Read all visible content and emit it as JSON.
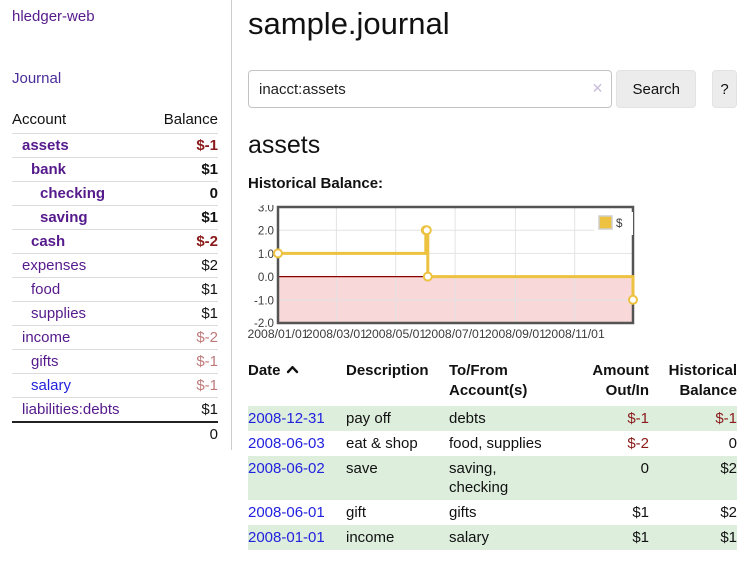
{
  "colors": {
    "accent_purple": "#551a8b",
    "link_blue": "#2222dd",
    "negative_strong": "#8b1a1a",
    "negative_soft": "#be7a7a",
    "row_stripe_green": "#ddeedd",
    "chart_line_gold": "#edc240",
    "chart_negative_fill": "#f8d8d8",
    "chart_zero_line": "#8b0000"
  },
  "sidebar": {
    "brand": "hledger-web",
    "journal_link": "Journal",
    "accounts": {
      "col_account": "Account",
      "col_balance": "Balance",
      "rows": [
        {
          "name": "assets",
          "balance": "$-1"
        },
        {
          "name": "bank",
          "balance": "$1"
        },
        {
          "name": "checking",
          "balance": "0"
        },
        {
          "name": "saving",
          "balance": "$1"
        },
        {
          "name": "cash",
          "balance": "$-2"
        },
        {
          "name": "expenses",
          "balance": "$2"
        },
        {
          "name": "food",
          "balance": "$1"
        },
        {
          "name": "supplies",
          "balance": "$1"
        },
        {
          "name": "income",
          "balance": "$-2"
        },
        {
          "name": "gifts",
          "balance": "$-1"
        },
        {
          "name": "salary",
          "balance": "$-1"
        },
        {
          "name": "liabilities:debts",
          "balance": "$1"
        }
      ],
      "total": "0"
    }
  },
  "main": {
    "title": "sample.journal",
    "search": {
      "value": "inacct:assets",
      "clear_icon": "✕",
      "search_button": "Search",
      "help_button": "?"
    },
    "heading": "assets",
    "chart_label": "Historical Balance:"
  },
  "chart_data": {
    "type": "line",
    "step": true,
    "title": "Historical Balance",
    "x": [
      "2008-01-01",
      "2008-06-01",
      "2008-06-02",
      "2008-06-03",
      "2008-12-31"
    ],
    "series": [
      {
        "name": "$",
        "color": "#edc240",
        "values": [
          1,
          2,
          2,
          0,
          -1
        ]
      }
    ],
    "ylim": [
      -2,
      3
    ],
    "ytick_labels": [
      "3.0",
      "2.0",
      "1.0",
      "0.0",
      "-1.0",
      "-2.0"
    ],
    "xtick_labels": [
      "2008/01/01",
      "2008/03/01",
      "2008/05/01",
      "2008/07/01",
      "2008/09/01",
      "2008/11/01"
    ],
    "legend": [
      "$"
    ],
    "legend_position": "top-right",
    "grid": true,
    "negative_region_fill": "#f8d8d8",
    "zero_line_color": "#8b0000"
  },
  "register": {
    "col_date": "Date",
    "col_description": "Description",
    "col_accounts": "To/From Account(s)",
    "col_amount": "Amount Out/In",
    "col_balance": "Historical Balance",
    "rows": [
      {
        "date": "2008-12-31",
        "description": "pay off",
        "accounts": "debts",
        "amount": "$-1",
        "balance": "$-1"
      },
      {
        "date": "2008-06-03",
        "description": "eat & shop",
        "accounts": "food, supplies",
        "amount": "$-2",
        "balance": "0"
      },
      {
        "date": "2008-06-02",
        "description": "save",
        "accounts": "saving, checking",
        "amount": "0",
        "balance": "$2"
      },
      {
        "date": "2008-06-01",
        "description": "gift",
        "accounts": "gifts",
        "amount": "$1",
        "balance": "$2"
      },
      {
        "date": "2008-01-01",
        "description": "income",
        "accounts": "salary",
        "amount": "$1",
        "balance": "$1"
      }
    ]
  }
}
